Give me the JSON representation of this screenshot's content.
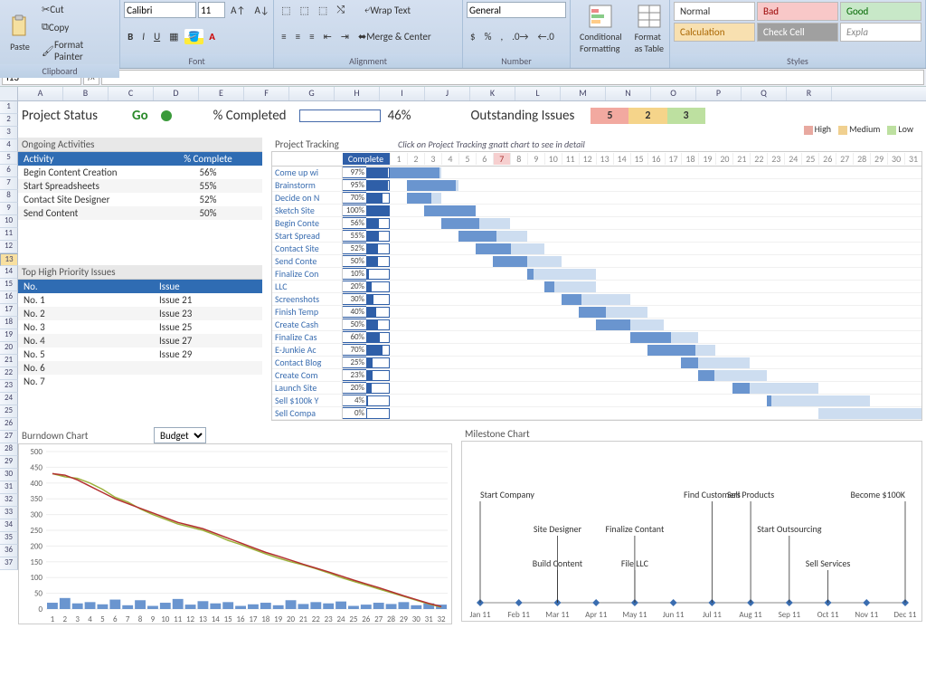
{
  "ribbon": {
    "clipboard": {
      "paste": "Paste",
      "cut": "Cut",
      "copy": "Copy",
      "fp": "Format Painter",
      "label": "Clipboard"
    },
    "font": {
      "name": "Calibri",
      "size": "11",
      "label": "Font"
    },
    "alignment": {
      "wrap": "Wrap Text",
      "merge": "Merge & Center",
      "label": "Alignment"
    },
    "number": {
      "fmt": "General",
      "label": "Number"
    },
    "cond": {
      "cf": "Conditional\nFormatting",
      "fat": "Format\nas Table",
      "label": ""
    },
    "styles": {
      "normal": "Normal",
      "bad": "Bad",
      "good": "Good",
      "calc": "Calculation",
      "check": "Check Cell",
      "expl": "Expla",
      "label": "Styles"
    }
  },
  "namebox": "I13",
  "columns": [
    "A",
    "B",
    "C",
    "D",
    "E",
    "F",
    "G",
    "H",
    "I",
    "J",
    "K",
    "L",
    "M",
    "N",
    "O",
    "P",
    "Q",
    "R"
  ],
  "rows_count": 37,
  "sel_row": 13,
  "status": {
    "title": "Project Status",
    "go": "Go",
    "pct_label": "% Completed",
    "pct": 46,
    "pct_text": "46%",
    "out_label": "Outstanding Issues",
    "issues": [
      {
        "n": "5",
        "bg": "#f2a9a0"
      },
      {
        "n": "2",
        "bg": "#f5d48a"
      },
      {
        "n": "3",
        "bg": "#bde0a0"
      }
    ],
    "legend": [
      {
        "label": "High",
        "c": "#e8a9a0"
      },
      {
        "label": "Medium",
        "c": "#f0d090"
      },
      {
        "label": "Low",
        "c": "#bde0a0"
      }
    ]
  },
  "ongoing": {
    "title": "Ongoing Activities",
    "h1": "Activity",
    "h2": "% Complete",
    "rows": [
      {
        "a": "Begin Content Creation",
        "p": "56%"
      },
      {
        "a": "Start Spreadsheets",
        "p": "55%"
      },
      {
        "a": "Contact Site Designer",
        "p": "52%"
      },
      {
        "a": "Send Content",
        "p": "50%"
      }
    ]
  },
  "issues": {
    "title": "Top High Priority Issues",
    "h1": "No.",
    "h2": "Issue",
    "rows": [
      {
        "n": "No. 1",
        "i": "Issue 21"
      },
      {
        "n": "No. 2",
        "i": "Issue 23"
      },
      {
        "n": "No. 3",
        "i": "Issue 25"
      },
      {
        "n": "No. 4",
        "i": "Issue 27"
      },
      {
        "n": "No. 5",
        "i": "Issue 29"
      },
      {
        "n": "No. 6",
        "i": ""
      },
      {
        "n": "No. 7",
        "i": ""
      }
    ]
  },
  "gantt": {
    "title": "Project Tracking",
    "hint": "Click on Project Tracking gnatt chart to see in detail",
    "pct_hdr": "Complete",
    "days": 31,
    "today": 7,
    "tasks": [
      {
        "name": "Come up wi",
        "pct": 97,
        "start": 1,
        "dur": 3
      },
      {
        "name": "Brainstorm",
        "pct": 95,
        "start": 2,
        "dur": 3
      },
      {
        "name": "Decide on N",
        "pct": 70,
        "start": 2,
        "dur": 2
      },
      {
        "name": "Sketch Site",
        "pct": 100,
        "start": 3,
        "dur": 3
      },
      {
        "name": "Begin Conte",
        "pct": 56,
        "start": 4,
        "dur": 4
      },
      {
        "name": "Start Spread",
        "pct": 55,
        "start": 5,
        "dur": 4
      },
      {
        "name": "Contact Site",
        "pct": 52,
        "start": 6,
        "dur": 4
      },
      {
        "name": "Send Conte",
        "pct": 50,
        "start": 7,
        "dur": 4
      },
      {
        "name": "Finalize Con",
        "pct": 10,
        "start": 9,
        "dur": 4
      },
      {
        "name": "LLC",
        "pct": 20,
        "start": 10,
        "dur": 3
      },
      {
        "name": "Screenshots",
        "pct": 30,
        "start": 11,
        "dur": 4
      },
      {
        "name": "Finish Temp",
        "pct": 40,
        "start": 12,
        "dur": 4
      },
      {
        "name": "Create Cash",
        "pct": 50,
        "start": 13,
        "dur": 4
      },
      {
        "name": "Finalize Cas",
        "pct": 60,
        "start": 15,
        "dur": 4
      },
      {
        "name": "E-Junkie Ac",
        "pct": 70,
        "start": 16,
        "dur": 4
      },
      {
        "name": "Contact Blog",
        "pct": 25,
        "start": 18,
        "dur": 4
      },
      {
        "name": "Create Com",
        "pct": 23,
        "start": 19,
        "dur": 4
      },
      {
        "name": "Launch Site",
        "pct": 20,
        "start": 21,
        "dur": 5
      },
      {
        "name": "Sell $100k Y",
        "pct": 4,
        "start": 23,
        "dur": 6
      },
      {
        "name": "Sell Compa",
        "pct": 0,
        "start": 26,
        "dur": 6
      }
    ]
  },
  "burndown": {
    "title": "Burndown Chart",
    "dropdown": "Budget",
    "ylim": [
      0,
      500
    ],
    "ystep": 50,
    "xcount": 32,
    "bars": [
      20,
      35,
      18,
      22,
      15,
      30,
      12,
      28,
      10,
      20,
      32,
      14,
      25,
      18,
      22,
      10,
      15,
      20,
      12,
      28,
      16,
      22,
      18,
      24,
      10,
      14,
      20,
      16,
      22,
      12,
      18,
      14
    ],
    "line1_color": "#b33030",
    "line2_color": "#9bb03a",
    "line1": [
      430,
      425,
      410,
      390,
      370,
      350,
      335,
      320,
      305,
      290,
      275,
      265,
      255,
      240,
      225,
      210,
      195,
      180,
      168,
      155,
      142,
      130,
      118,
      105,
      92,
      80,
      68,
      55,
      42,
      30,
      18,
      8
    ],
    "line2": [
      430,
      420,
      415,
      400,
      380,
      355,
      340,
      318,
      300,
      285,
      270,
      260,
      250,
      235,
      218,
      205,
      190,
      175,
      162,
      150,
      140,
      128,
      115,
      100,
      88,
      76,
      64,
      52,
      40,
      28,
      16,
      6
    ]
  },
  "milestone": {
    "title": "Milestone Chart",
    "months": [
      "Jan 11",
      "Feb 11",
      "Mar 11",
      "Apr 11",
      "May 11",
      "Jun 11",
      "Jul 11",
      "Aug 11",
      "Sep 11",
      "Oct 11",
      "Nov 11",
      "Dec 11"
    ],
    "items": [
      {
        "label": "Start Company",
        "m": 0,
        "h": 3
      },
      {
        "label": "Site Designer",
        "m": 2,
        "h": 2
      },
      {
        "label": "Build Content",
        "m": 2,
        "h": 1
      },
      {
        "label": "Finalize Contant",
        "m": 4,
        "h": 2
      },
      {
        "label": "File LLC",
        "m": 4,
        "h": 1
      },
      {
        "label": "Find Customers",
        "m": 6,
        "h": 3
      },
      {
        "label": "Sell Products",
        "m": 7,
        "h": 3
      },
      {
        "label": "Start Outsourcing",
        "m": 8,
        "h": 2
      },
      {
        "label": "Sell Services",
        "m": 9,
        "h": 1
      },
      {
        "label": "Become $100K",
        "m": 11,
        "h": 3
      }
    ],
    "marker_color": "#3a6db0"
  }
}
